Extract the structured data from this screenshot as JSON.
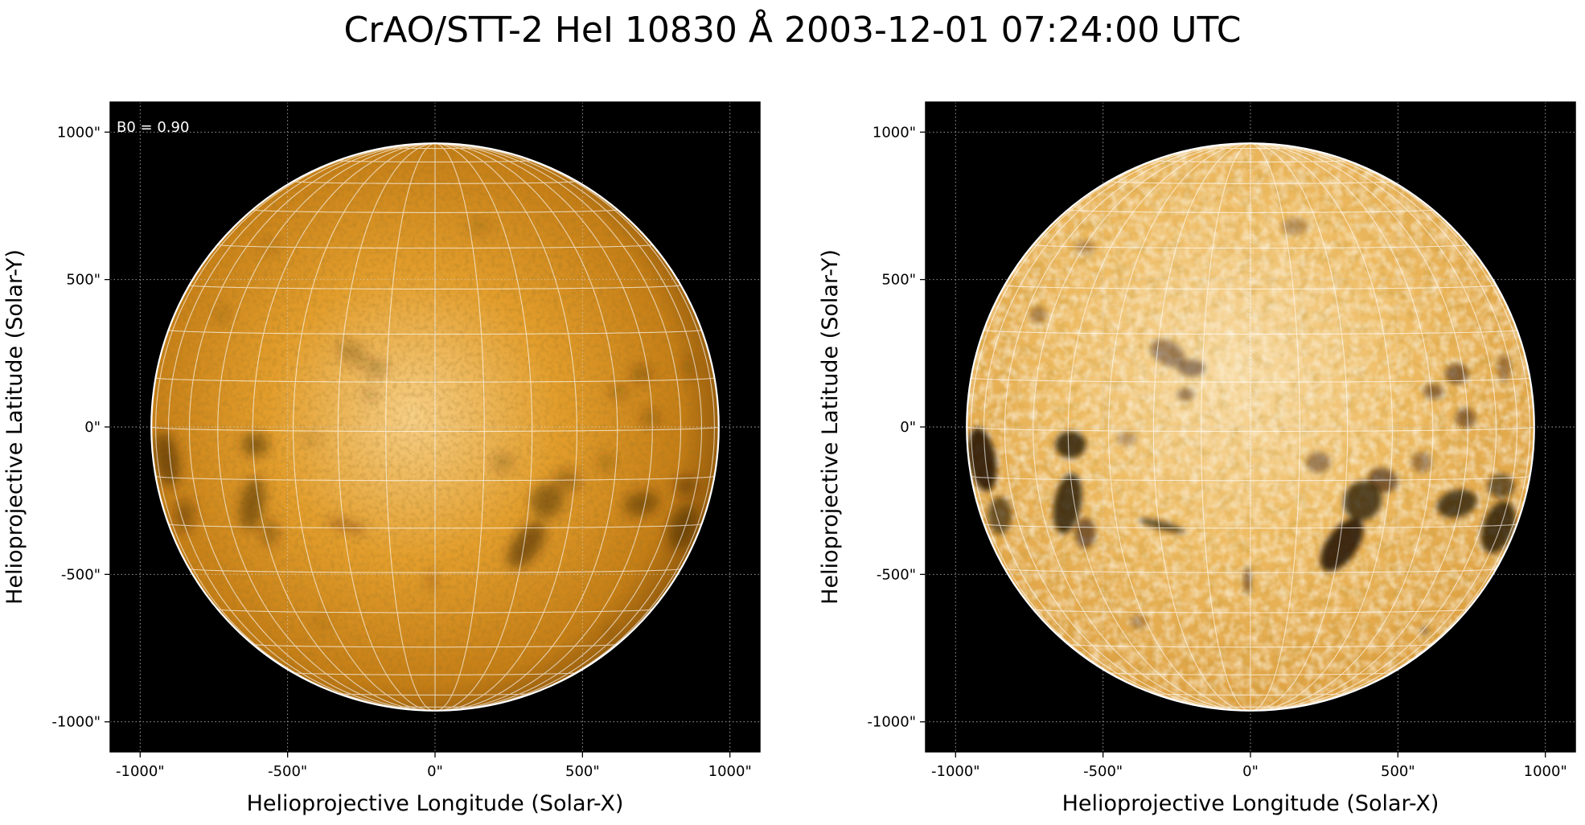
{
  "title": "CrAO/STT-2 HeI 10830 Å 2003-12-01 07:24:00 UTC",
  "panels": [
    {
      "name": "left",
      "annotation": "B0 = 0.90",
      "xlabel": "Helioprojective Longitude (Solar-X)",
      "ylabel": "Helioprojective Latitude (Solar-Y)",
      "xticks": [
        "-1000\"",
        "-500\"",
        "0\"",
        "500\"",
        "1000\""
      ],
      "yticks": [
        "1000\"",
        "500\"",
        "0\"",
        "-500\"",
        "-1000\""
      ],
      "style": "smooth"
    },
    {
      "name": "right",
      "annotation": "",
      "xlabel": "Helioprojective Longitude (Solar-X)",
      "ylabel": "Helioprojective Latitude (Solar-Y)",
      "xticks": [
        "-1000\"",
        "-500\"",
        "0\"",
        "500\"",
        "1000\""
      ],
      "yticks": [
        "1000\"",
        "500\"",
        "0\"",
        "-500\"",
        "-1000\""
      ],
      "style": "enhanced"
    }
  ],
  "colors": {
    "background": "#000000",
    "disk_center": "#f6c672",
    "disk_mid": "#dd9420",
    "disk_limb": "#a9680c",
    "grid": "#ffffff",
    "limb_outline": "#ffffff"
  }
}
